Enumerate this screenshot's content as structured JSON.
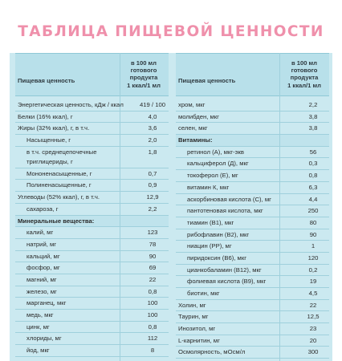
{
  "title": "ТАБЛИЦА ПИЩЕВОЙ ЦЕННОСТИ",
  "header": {
    "name": "Пищевая ценность",
    "unit_lines": [
      "в 100 мл",
      "готового",
      "продукта",
      "1 ккал/1 мл"
    ]
  },
  "left_rows": [
    {
      "name": "Энергетическая ценность, кДж / ккал",
      "value": "419 / 100",
      "type": "normal"
    },
    {
      "name": "Белки (16% ккал), г",
      "value": "4,0",
      "type": "normal"
    },
    {
      "name": "Жиры (32% ккал), г, в т.ч.",
      "value": "3,6",
      "type": "normal"
    },
    {
      "name": "Насыщенные, г",
      "value": "2,0",
      "type": "sub"
    },
    {
      "name": "в т.ч. среднецепочечные триглицериды, г",
      "name_lines": [
        "в т.ч. среднецепочечные",
        "триглицериды, г"
      ],
      "value": "1,8",
      "type": "subwrap"
    },
    {
      "name": "Мононенасыщенные, г",
      "value": "0,7",
      "type": "sub"
    },
    {
      "name": "Полиненасыщенные, г",
      "value": "0,9",
      "type": "sub"
    },
    {
      "name": "Углеводы (52% ккал), г, в т.ч.",
      "value": "12,9",
      "type": "normal"
    },
    {
      "name": "сахароза, г",
      "value": "2,2",
      "type": "sub"
    },
    {
      "name": "Минеральные вещества:",
      "value": "",
      "type": "sect"
    },
    {
      "name": "калий, мг",
      "value": "123",
      "type": "sub"
    },
    {
      "name": "натрий, мг",
      "value": "78",
      "type": "sub"
    },
    {
      "name": "кальций, мг",
      "value": "90",
      "type": "sub"
    },
    {
      "name": "фосфор, мг",
      "value": "69",
      "type": "sub"
    },
    {
      "name": "магний, мг",
      "value": "22",
      "type": "sub"
    },
    {
      "name": "железо, мг",
      "value": "0,8",
      "type": "sub"
    },
    {
      "name": "марганец, мкг",
      "value": "100",
      "type": "sub"
    },
    {
      "name": "медь, мкг",
      "value": "100",
      "type": "sub"
    },
    {
      "name": "цинк, мг",
      "value": "0,8",
      "type": "sub"
    },
    {
      "name": "хлориды, мг",
      "value": "112",
      "type": "sub"
    },
    {
      "name": "йод, мкг",
      "value": "8",
      "type": "sub"
    }
  ],
  "right_rows": [
    {
      "name": "хром, мкг",
      "value": "2,2",
      "type": "normal"
    },
    {
      "name": "молибден, мкг",
      "value": "3,8",
      "type": "normal"
    },
    {
      "name": "селен, мкг",
      "value": "3,8",
      "type": "normal"
    },
    {
      "name": "Витамины:",
      "value": "",
      "type": "sect"
    },
    {
      "name": "ретинол (А), мкг-экв",
      "value": "56",
      "type": "sub"
    },
    {
      "name": "кальциферол (Д), мкг",
      "value": "0,3",
      "type": "sub"
    },
    {
      "name": "токоферол (Е), мг",
      "value": "0,8",
      "type": "sub"
    },
    {
      "name": "витамин К, мкг",
      "value": "6,3",
      "type": "sub"
    },
    {
      "name": "аскорбиновая кислота (С), мг",
      "value": "4,4",
      "type": "sub"
    },
    {
      "name": "пантотеновая кислота, мкг",
      "value": "250",
      "type": "sub"
    },
    {
      "name": "тиамин (В1), мкг",
      "value": "80",
      "type": "sub"
    },
    {
      "name": "рибофлавин (В2), мкг",
      "value": "90",
      "type": "sub"
    },
    {
      "name": "ниацин (РР), мг",
      "value": "1",
      "type": "sub"
    },
    {
      "name": "пиридоксин (В6), мкг",
      "value": "120",
      "type": "sub"
    },
    {
      "name": "цианкобаламин (В12), мкг",
      "value": "0,2",
      "type": "sub"
    },
    {
      "name": "фолиевая кислота (В9), мкг",
      "value": "19",
      "type": "sub"
    },
    {
      "name": "биотин, мкг",
      "value": "4,5",
      "type": "sub"
    },
    {
      "name": "Холин, мг",
      "value": "22",
      "type": "normal"
    },
    {
      "name": "Таурин, мг",
      "value": "12,5",
      "type": "normal"
    },
    {
      "name": "Инозитол, мг",
      "value": "23",
      "type": "normal"
    },
    {
      "name": "L-карнитин, мг",
      "value": "20",
      "type": "normal"
    },
    {
      "name": "Осмолярность, мОсм/л",
      "value": "300",
      "type": "normal"
    }
  ]
}
